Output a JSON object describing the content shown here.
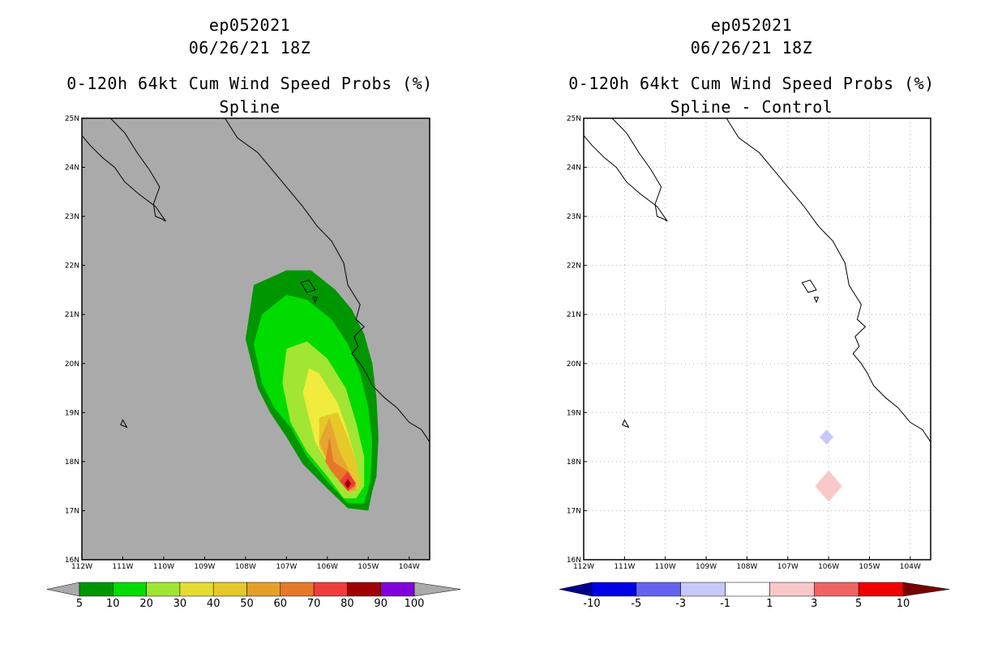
{
  "chart_data": [
    {
      "type": "heatmap",
      "title_lines": [
        "ep052021",
        "06/26/21 18Z",
        "0-120h 64kt Cum Wind Speed Probs (%)",
        "Spline"
      ],
      "xlim": [
        -112,
        -103.5
      ],
      "ylim": [
        16,
        25
      ],
      "x_ticks": [
        "112W",
        "111W",
        "110W",
        "109W",
        "108W",
        "107W",
        "106W",
        "105W",
        "104W"
      ],
      "y_ticks": [
        "16N",
        "17N",
        "18N",
        "19N",
        "20N",
        "21N",
        "22N",
        "23N",
        "24N",
        "25N"
      ],
      "grid": false,
      "background": "#aaaaaa",
      "colorbar": {
        "labels": [
          "5",
          "10",
          "20",
          "30",
          "40",
          "50",
          "60",
          "70",
          "80",
          "90",
          "100"
        ],
        "colors": [
          "#009600",
          "#00dc00",
          "#a0e632",
          "#e6dc32",
          "#e6c828",
          "#e6a028",
          "#e67828",
          "#f03c3c",
          "#a00000",
          "#8200dc"
        ],
        "end_colors": [
          "#aaaaaa",
          "#aaaaaa"
        ]
      },
      "contour_levels": [
        {
          "min": 5,
          "color": "#009600",
          "polygon": [
            [
              -108,
              20.5
            ],
            [
              -107.8,
              21.6
            ],
            [
              -107,
              21.9
            ],
            [
              -106.4,
              21.9
            ],
            [
              -105.8,
              21.5
            ],
            [
              -105.4,
              21.1
            ],
            [
              -105.1,
              20.6
            ],
            [
              -104.9,
              20.0
            ],
            [
              -104.8,
              19.3
            ],
            [
              -104.75,
              18.5
            ],
            [
              -104.8,
              17.7
            ],
            [
              -104.9,
              17.4
            ],
            [
              -105.0,
              17.0
            ],
            [
              -105.5,
              17.05
            ],
            [
              -106.0,
              17.45
            ],
            [
              -106.6,
              17.95
            ],
            [
              -107.0,
              18.5
            ],
            [
              -107.4,
              19.0
            ],
            [
              -107.7,
              19.5
            ]
          ]
        },
        {
          "min": 10,
          "color": "#00dc00",
          "polygon": [
            [
              -107.8,
              20.4
            ],
            [
              -107.6,
              21.0
            ],
            [
              -107.0,
              21.4
            ],
            [
              -106.5,
              21.3
            ],
            [
              -105.9,
              20.9
            ],
            [
              -105.5,
              20.4
            ],
            [
              -105.2,
              19.8
            ],
            [
              -105.0,
              19.1
            ],
            [
              -104.9,
              18.4
            ],
            [
              -104.95,
              17.6
            ],
            [
              -105.1,
              17.15
            ],
            [
              -105.5,
              17.15
            ],
            [
              -106.0,
              17.6
            ],
            [
              -106.5,
              18.1
            ],
            [
              -106.9,
              18.7
            ],
            [
              -107.3,
              19.1
            ],
            [
              -107.6,
              19.6
            ]
          ]
        },
        {
          "min": 20,
          "color": "#a0e632",
          "polygon": [
            [
              -107.1,
              19.6
            ],
            [
              -107.0,
              20.3
            ],
            [
              -106.5,
              20.45
            ],
            [
              -106.0,
              20.1
            ],
            [
              -105.55,
              19.5
            ],
            [
              -105.3,
              18.8
            ],
            [
              -105.1,
              18.1
            ],
            [
              -105.1,
              17.5
            ],
            [
              -105.3,
              17.25
            ],
            [
              -105.6,
              17.25
            ],
            [
              -106.0,
              17.7
            ],
            [
              -106.5,
              18.2
            ],
            [
              -106.9,
              18.8
            ]
          ]
        },
        {
          "min": 30,
          "color": "#f0eb3c",
          "polygon": [
            [
              -106.6,
              19.4
            ],
            [
              -106.45,
              19.9
            ],
            [
              -106.2,
              19.8
            ],
            [
              -105.75,
              19.2
            ],
            [
              -105.5,
              18.6
            ],
            [
              -105.3,
              18.0
            ],
            [
              -105.2,
              17.5
            ],
            [
              -105.45,
              17.35
            ],
            [
              -105.8,
              17.7
            ],
            [
              -106.3,
              18.4
            ]
          ]
        },
        {
          "min": 40,
          "color": "#e6c828",
          "polygon": [
            [
              -106.2,
              18.9
            ],
            [
              -105.75,
              19.0
            ],
            [
              -105.5,
              18.5
            ],
            [
              -105.3,
              18.0
            ],
            [
              -105.2,
              17.5
            ],
            [
              -105.45,
              17.35
            ],
            [
              -105.8,
              17.7
            ],
            [
              -106.2,
              18.3
            ]
          ]
        },
        {
          "min": 50,
          "color": "#e6a532",
          "polygon": [
            [
              -106.2,
              18.4
            ],
            [
              -105.95,
              18.9
            ],
            [
              -105.7,
              18.2
            ],
            [
              -105.35,
              17.6
            ],
            [
              -105.3,
              17.4
            ],
            [
              -105.5,
              17.4
            ],
            [
              -105.9,
              17.8
            ]
          ]
        },
        {
          "min": 60,
          "color": "#e67828",
          "polygon": [
            [
              -106.05,
              18.0
            ],
            [
              -105.95,
              18.5
            ],
            [
              -105.85,
              18.0
            ],
            [
              -105.5,
              17.8
            ],
            [
              -105.3,
              17.5
            ],
            [
              -105.5,
              17.4
            ],
            [
              -105.9,
              17.8
            ]
          ]
        },
        {
          "min": 70,
          "color": "#f03c3c",
          "polygon": [
            [
              -105.7,
              17.6
            ],
            [
              -105.5,
              17.8
            ],
            [
              -105.3,
              17.55
            ],
            [
              -105.5,
              17.4
            ]
          ]
        },
        {
          "min": 80,
          "color": "#a00000",
          "polygon": [
            [
              -105.58,
              17.55
            ],
            [
              -105.5,
              17.65
            ],
            [
              -105.42,
              17.55
            ],
            [
              -105.5,
              17.45
            ]
          ]
        }
      ]
    },
    {
      "type": "heatmap",
      "title_lines": [
        "ep052021",
        "06/26/21 18Z",
        "0-120h 64kt Cum Wind Speed Probs (%)",
        "Spline - Control"
      ],
      "xlim": [
        -112,
        -103.5
      ],
      "ylim": [
        16,
        25
      ],
      "x_ticks": [
        "112W",
        "111W",
        "110W",
        "109W",
        "108W",
        "107W",
        "106W",
        "105W",
        "104W"
      ],
      "y_ticks": [
        "16N",
        "17N",
        "18N",
        "19N",
        "20N",
        "21N",
        "22N",
        "23N",
        "24N",
        "25N"
      ],
      "grid": true,
      "background": "#ffffff",
      "colorbar": {
        "labels": [
          "-10",
          "-5",
          "-3",
          "-1",
          "1",
          "3",
          "5",
          "10"
        ],
        "colors": [
          "#0000e6",
          "#6464f0",
          "#c8c8fa",
          "#ffffff",
          "#fac8c8",
          "#f06464",
          "#f00000"
        ],
        "end_colors": [
          "#00008c",
          "#780000"
        ]
      },
      "anomalies": [
        {
          "lon": -106.05,
          "lat": 18.5,
          "half_width": 0.17,
          "half_height": 0.15,
          "color": "#c8c8fa"
        },
        {
          "lon": -106.0,
          "lat": 17.5,
          "half_width": 0.33,
          "half_height": 0.32,
          "color": "#fac8c8"
        }
      ]
    }
  ],
  "coastlines": {
    "mainland": [
      [
        -112,
        24.65
      ],
      [
        -111.8,
        24.45
      ],
      [
        -111.5,
        24.2
      ],
      [
        -111.2,
        24.0
      ],
      [
        -110.95,
        23.7
      ],
      [
        -110.6,
        23.45
      ],
      [
        -110.2,
        23.2
      ],
      [
        -109.95,
        22.9
      ],
      [
        -110.05,
        22.95
      ],
      [
        -110.2,
        23.0
      ],
      [
        -110.25,
        23.25
      ],
      [
        -110.1,
        23.6
      ],
      [
        -110.35,
        23.95
      ],
      [
        -110.65,
        24.3
      ],
      [
        -110.95,
        24.7
      ],
      [
        -111.3,
        25
      ]
    ],
    "mainland_east": [
      [
        -108.5,
        25
      ],
      [
        -108.2,
        24.6
      ],
      [
        -107.7,
        24.3
      ],
      [
        -107.3,
        23.9
      ],
      [
        -106.9,
        23.5
      ],
      [
        -106.6,
        23.2
      ],
      [
        -106.25,
        22.8
      ],
      [
        -105.9,
        22.5
      ],
      [
        -105.6,
        22.05
      ],
      [
        -105.5,
        21.6
      ],
      [
        -105.35,
        21.4
      ],
      [
        -105.2,
        21.2
      ],
      [
        -105.3,
        20.9
      ],
      [
        -105.1,
        20.75
      ],
      [
        -105.35,
        20.55
      ],
      [
        -105.25,
        20.35
      ],
      [
        -105.4,
        20.2
      ],
      [
        -105.2,
        20.0
      ],
      [
        -105.05,
        19.8
      ],
      [
        -104.9,
        19.55
      ],
      [
        -104.6,
        19.3
      ],
      [
        -104.3,
        19.1
      ],
      [
        -104.0,
        18.8
      ],
      [
        -103.7,
        18.65
      ],
      [
        -103.5,
        18.4
      ]
    ],
    "islands": [
      [
        [
          -111.0,
          18.85
        ],
        [
          -110.9,
          18.7
        ],
        [
          -111.05,
          18.75
        ]
      ],
      [
        [
          -106.65,
          21.65
        ],
        [
          -106.5,
          21.45
        ],
        [
          -106.3,
          21.5
        ],
        [
          -106.45,
          21.7
        ]
      ],
      [
        [
          -106.35,
          21.35
        ],
        [
          -106.3,
          21.25
        ],
        [
          -106.25,
          21.35
        ]
      ]
    ]
  }
}
